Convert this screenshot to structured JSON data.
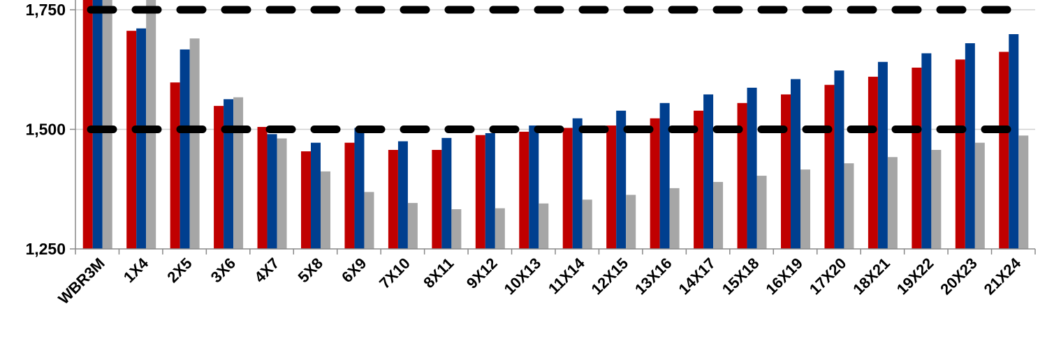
{
  "chart_data": {
    "type": "bar",
    "categories": [
      "WBR3M",
      "1X4",
      "2X5",
      "3X6",
      "4X7",
      "5X8",
      "6X9",
      "7X10",
      "8X11",
      "9X12",
      "10X13",
      "11X14",
      "12X15",
      "13X16",
      "14X17",
      "15X18",
      "16X19",
      "17X20",
      "18X21",
      "19X22",
      "20X23",
      "21X24"
    ],
    "series": [
      {
        "color": "#c00000",
        "values": [
          1790,
          1706,
          1598,
          1549,
          1505,
          1454,
          1472,
          1457,
          1457,
          1488,
          1495,
          1503,
          1508,
          1523,
          1539,
          1555,
          1573,
          1593,
          1610,
          1629,
          1646,
          1662
        ]
      },
      {
        "color": "#003f8f",
        "values": [
          1790,
          1711,
          1667,
          1563,
          1490,
          1472,
          1503,
          1475,
          1482,
          1492,
          1508,
          1523,
          1539,
          1555,
          1573,
          1587,
          1605,
          1623,
          1641,
          1659,
          1680,
          1699
        ]
      },
      {
        "color": "#a6a6a6",
        "values": [
          1790,
          1790,
          1690,
          1567,
          1481,
          1412,
          1369,
          1346,
          1333,
          1335,
          1345,
          1353,
          1363,
          1377,
          1390,
          1403,
          1416,
          1429,
          1442,
          1457,
          1472,
          1487
        ]
      }
    ],
    "reference_lines": [
      1750,
      1500
    ],
    "y_ticks": [
      "1,250",
      "1,500",
      "1,750"
    ],
    "ylim": [
      1250,
      1768
    ],
    "grid": true
  }
}
